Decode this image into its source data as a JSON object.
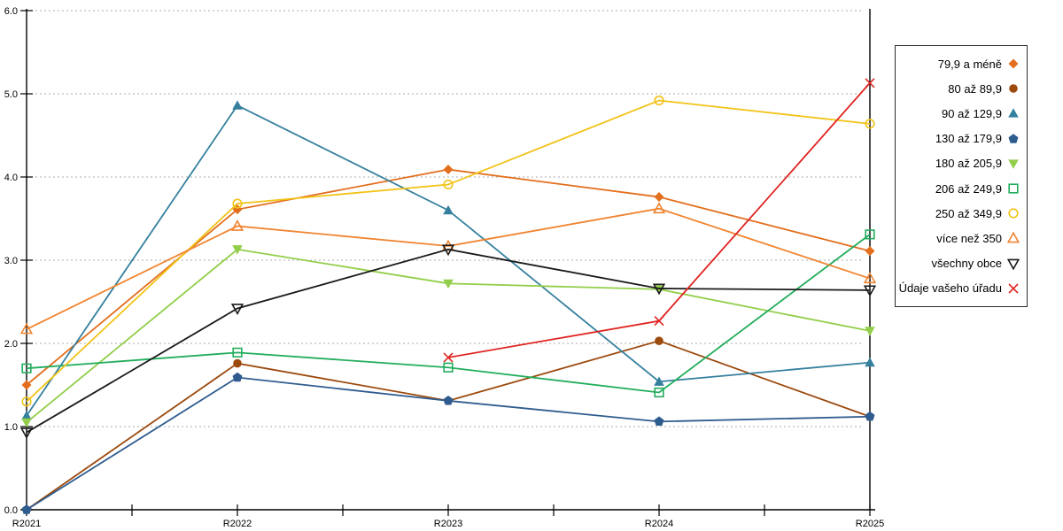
{
  "chart_data": {
    "type": "line",
    "title": "",
    "xlabel": "",
    "ylabel": "",
    "categories": [
      "R2021",
      "R2022",
      "R2023",
      "R2024",
      "R2025"
    ],
    "y_axis": {
      "min": 0,
      "max": 6,
      "step": 1,
      "tick_labels": [
        "0.0",
        "1.0",
        "2.0",
        "3.0",
        "4.0",
        "5.0",
        "6.0"
      ]
    },
    "grid": "horizontal dotted gridlines at each 1.0",
    "legend_position": "right",
    "axis_color": "#000000",
    "grid_color": "#bcbcbc",
    "series": [
      {
        "name": "79,9 a méně",
        "color": "#E36F1E",
        "marker": "diamond-filled",
        "values": [
          1.5,
          3.61,
          4.09,
          3.76,
          3.11
        ]
      },
      {
        "name": "80 až 89,9",
        "color": "#9C4A0E",
        "marker": "circle-filled",
        "values": [
          0.0,
          1.76,
          1.31,
          2.03,
          1.12
        ]
      },
      {
        "name": "90 až 129,9",
        "color": "#35809E",
        "marker": "triangle-up-filled",
        "values": [
          1.13,
          4.86,
          3.6,
          1.54,
          1.77
        ]
      },
      {
        "name": "130 až 179,9",
        "color": "#2F5C8F",
        "marker": "pentagon-filled",
        "values": [
          0.0,
          1.59,
          1.31,
          1.06,
          1.12
        ]
      },
      {
        "name": "180 až 205,9",
        "color": "#92CE4A",
        "marker": "triangle-down-filled",
        "values": [
          1.05,
          3.13,
          2.72,
          2.65,
          2.15
        ]
      },
      {
        "name": "206 až 249,9",
        "color": "#22AD5C",
        "marker": "square-open",
        "values": [
          1.7,
          1.89,
          1.71,
          1.41,
          3.31
        ]
      },
      {
        "name": "250 až 349,9",
        "color": "#F2C318",
        "marker": "circle-open",
        "values": [
          1.3,
          3.68,
          3.91,
          4.92,
          4.64
        ]
      },
      {
        "name": "více než 350",
        "color": "#F08430",
        "marker": "triangle-up-open",
        "values": [
          2.17,
          3.41,
          3.17,
          3.62,
          2.78
        ]
      },
      {
        "name": "všechny obce",
        "color": "#1A1A1A",
        "marker": "triangle-down-open",
        "values": [
          0.93,
          2.42,
          3.13,
          2.66,
          2.64
        ]
      },
      {
        "name": "Údaje vašeho úřadu",
        "color": "#E02421",
        "marker": "x",
        "values": [
          null,
          null,
          1.83,
          2.27,
          5.13
        ]
      }
    ]
  }
}
